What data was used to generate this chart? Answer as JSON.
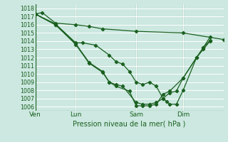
{
  "xlabel": "Pression niveau de la mer( hPa )",
  "ylim": [
    1005.5,
    1018.5
  ],
  "yticks": [
    1006,
    1007,
    1008,
    1009,
    1010,
    1011,
    1012,
    1013,
    1014,
    1015,
    1016,
    1017,
    1018
  ],
  "xtick_labels": [
    "Ven",
    "Lun",
    "Sam",
    "Dim"
  ],
  "xtick_positions": [
    0,
    3,
    7.5,
    11
  ],
  "xlim": [
    0,
    14
  ],
  "bg_color": "#cce8e0",
  "grid_color": "#ffffff",
  "line_color": "#1a6020",
  "lines": [
    [
      [
        0.0,
        1017.3
      ],
      [
        0.5,
        1017.5
      ],
      [
        1.5,
        1016.2
      ],
      [
        3.0,
        1016.0
      ],
      [
        4.0,
        1015.8
      ],
      [
        5.0,
        1015.5
      ],
      [
        7.5,
        1015.2
      ],
      [
        11.0,
        1015.0
      ],
      [
        14.0,
        1014.2
      ]
    ],
    [
      [
        0.0,
        1017.3
      ],
      [
        1.5,
        1016.1
      ],
      [
        3.0,
        1013.8
      ],
      [
        3.5,
        1013.8
      ],
      [
        4.5,
        1013.5
      ],
      [
        5.5,
        1012.3
      ],
      [
        6.0,
        1011.5
      ],
      [
        6.5,
        1011.2
      ],
      [
        7.0,
        1010.3
      ],
      [
        7.5,
        1009.0
      ],
      [
        8.0,
        1008.7
      ],
      [
        8.5,
        1009.0
      ],
      [
        9.0,
        1008.5
      ],
      [
        9.5,
        1007.0
      ],
      [
        9.8,
        1006.6
      ],
      [
        10.0,
        1006.3
      ],
      [
        10.5,
        1006.3
      ],
      [
        11.0,
        1008.0
      ],
      [
        12.0,
        1012.0
      ],
      [
        12.5,
        1013.2
      ],
      [
        13.0,
        1014.5
      ]
    ],
    [
      [
        0.0,
        1017.3
      ],
      [
        1.5,
        1016.0
      ],
      [
        3.0,
        1013.7
      ],
      [
        4.0,
        1011.4
      ],
      [
        5.0,
        1010.3
      ],
      [
        5.5,
        1009.0
      ],
      [
        6.0,
        1008.7
      ],
      [
        6.5,
        1008.5
      ],
      [
        7.5,
        1006.5
      ],
      [
        8.0,
        1006.3
      ],
      [
        8.5,
        1006.3
      ],
      [
        9.0,
        1006.5
      ],
      [
        9.5,
        1007.0
      ],
      [
        10.0,
        1007.7
      ],
      [
        10.5,
        1007.9
      ],
      [
        11.0,
        1009.5
      ],
      [
        12.0,
        1012.0
      ],
      [
        12.5,
        1013.2
      ],
      [
        13.0,
        1014.1
      ]
    ],
    [
      [
        0.0,
        1017.3
      ],
      [
        1.5,
        1016.0
      ],
      [
        3.0,
        1013.6
      ],
      [
        4.0,
        1011.3
      ],
      [
        5.0,
        1010.2
      ],
      [
        5.5,
        1009.0
      ],
      [
        6.0,
        1008.5
      ],
      [
        7.0,
        1007.9
      ],
      [
        7.5,
        1006.1
      ],
      [
        8.0,
        1006.1
      ],
      [
        8.5,
        1006.1
      ],
      [
        9.0,
        1006.3
      ],
      [
        9.5,
        1007.5
      ],
      [
        10.0,
        1007.9
      ],
      [
        11.0,
        1009.5
      ],
      [
        12.0,
        1012.0
      ],
      [
        12.5,
        1013.0
      ],
      [
        13.0,
        1014.0
      ]
    ]
  ]
}
